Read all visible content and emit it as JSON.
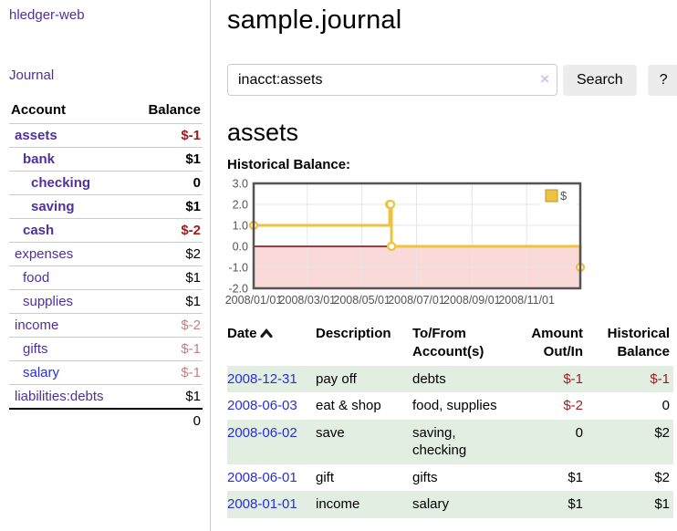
{
  "app": {
    "brand": "hledger-web",
    "nav": {
      "journal": "Journal"
    }
  },
  "sidebar": {
    "headers": {
      "account": "Account",
      "balance": "Balance"
    },
    "accounts": [
      {
        "name": "assets",
        "balance": "$-1",
        "depth": 0,
        "bold": true,
        "balance_tone": "negative-strong"
      },
      {
        "name": "bank",
        "balance": "$1",
        "depth": 1,
        "bold": true,
        "balance_tone": "normal"
      },
      {
        "name": "checking",
        "balance": "0",
        "depth": 2,
        "bold": true,
        "balance_tone": "normal"
      },
      {
        "name": "saving",
        "balance": "$1",
        "depth": 2,
        "bold": true,
        "balance_tone": "normal"
      },
      {
        "name": "cash",
        "balance": "$-2",
        "depth": 1,
        "bold": true,
        "balance_tone": "negative-strong"
      },
      {
        "name": "expenses",
        "balance": "$2",
        "depth": 0,
        "bold": false,
        "balance_tone": "normal"
      },
      {
        "name": "food",
        "balance": "$1",
        "depth": 1,
        "bold": false,
        "balance_tone": "normal"
      },
      {
        "name": "supplies",
        "balance": "$1",
        "depth": 1,
        "bold": false,
        "balance_tone": "normal"
      },
      {
        "name": "income",
        "balance": "$-2",
        "depth": 0,
        "bold": false,
        "balance_tone": "negative-muted"
      },
      {
        "name": "gifts",
        "balance": "$-1",
        "depth": 1,
        "bold": false,
        "balance_tone": "negative-muted"
      },
      {
        "name": "salary",
        "balance": "$-1",
        "depth": 1,
        "bold": false,
        "balance_tone": "negative-muted"
      },
      {
        "name": "liabilities:debts",
        "balance": "$1",
        "depth": 0,
        "bold": false,
        "balance_tone": "normal"
      }
    ],
    "total": "0"
  },
  "main": {
    "title": "sample.journal",
    "search": {
      "value": "inacct:assets",
      "clear_icon": "×",
      "search_button": "Search",
      "help_button": "?"
    },
    "account_heading": "assets",
    "chart_title": "Historical Balance:"
  },
  "chart_data": {
    "type": "line",
    "style": "step",
    "title": "Historical Balance:",
    "legend": {
      "position": "top-right",
      "entries": [
        "$"
      ]
    },
    "ylim": [
      -2.0,
      3.0
    ],
    "yticks": [
      3.0,
      2.0,
      1.0,
      0.0,
      -1.0,
      -2.0
    ],
    "xrange": [
      "2008-01-01",
      "2008-12-31"
    ],
    "xticks": [
      "2008/01/01",
      "2008/03/01",
      "2008/05/01",
      "2008/07/01",
      "2008/09/01",
      "2008/11/01"
    ],
    "series": [
      {
        "name": "$",
        "points": [
          {
            "date": "2008-01-01",
            "value": 1
          },
          {
            "date": "2008-06-01",
            "value": 2
          },
          {
            "date": "2008-06-02",
            "value": 2
          },
          {
            "date": "2008-06-03",
            "value": 0
          },
          {
            "date": "2008-12-31",
            "value": -1
          }
        ]
      }
    ],
    "colors": {
      "line": "#edc240",
      "marker_fill": "#ffffff",
      "negative_fill": "#fad9d9",
      "zero_line": "#8b0000",
      "grid": "#e6e6e6",
      "border": "#545454"
    }
  },
  "register": {
    "headers": {
      "date": "Date",
      "description": "Description",
      "tofrom": "To/From Account(s)",
      "amount": "Amount Out/In",
      "balance": "Historical Balance"
    },
    "sort": {
      "column": "date",
      "direction": "ascending"
    },
    "rows": [
      {
        "date": "2008-12-31",
        "description": "pay off",
        "accounts": "debts",
        "amount": "$-1",
        "balance": "$-1"
      },
      {
        "date": "2008-06-03",
        "description": "eat & shop",
        "accounts": "food, supplies",
        "amount": "$-2",
        "balance": "0"
      },
      {
        "date": "2008-06-02",
        "description": "save",
        "accounts": "saving, checking",
        "amount": "0",
        "balance": "$2"
      },
      {
        "date": "2008-06-01",
        "description": "gift",
        "accounts": "gifts",
        "amount": "$1",
        "balance": "$2"
      },
      {
        "date": "2008-01-01",
        "description": "income",
        "accounts": "salary",
        "amount": "$1",
        "balance": "$1"
      }
    ]
  }
}
